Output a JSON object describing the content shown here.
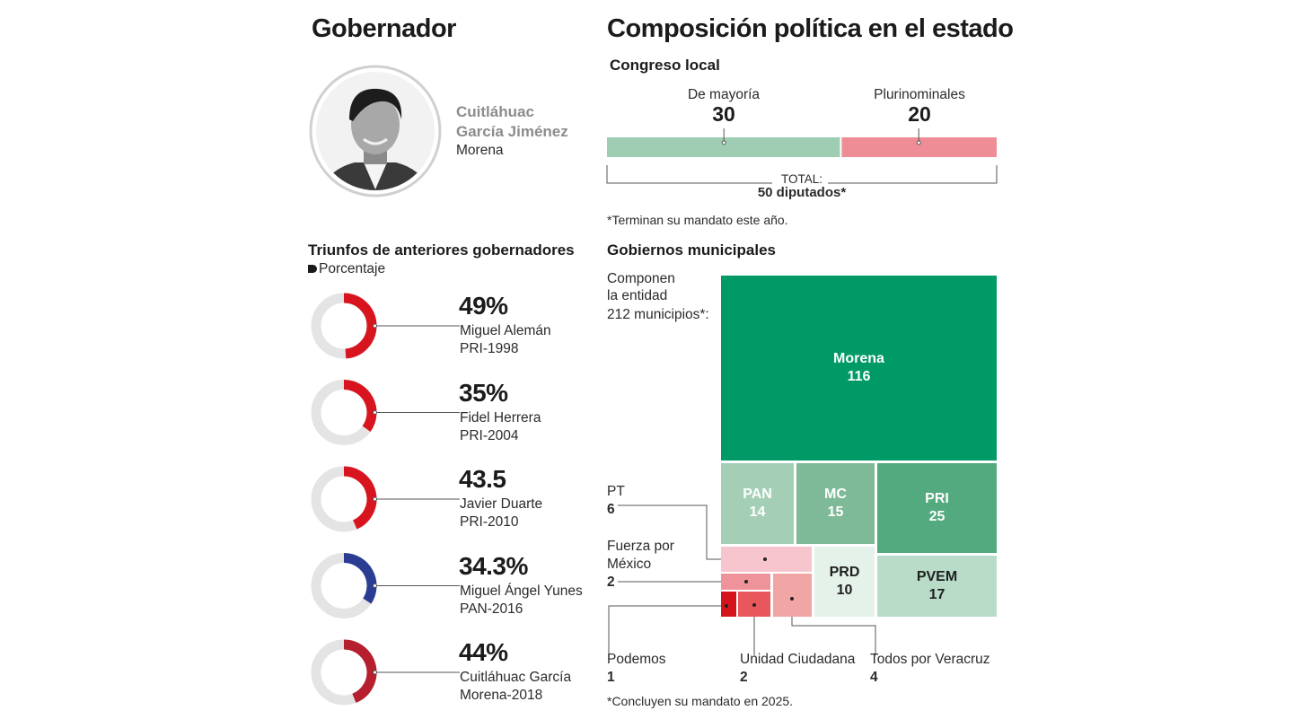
{
  "gobernador": {
    "title": "Gobernador",
    "name_line1": "Cuitláhuac",
    "name_line2": "García Jiménez",
    "party": "Morena"
  },
  "composicion": {
    "title": "Composición política en el estado",
    "congreso_title": "Congreso local",
    "mayoria_label": "De mayoría",
    "mayoria_value": "30",
    "pluri_label": "Plurinominales",
    "pluri_value": "20",
    "total_label": "TOTAL:",
    "total_value": "50 diputados*",
    "note": "*Terminan su mandato este año.",
    "colors": {
      "mayoria": "#9fcdb3",
      "pluri": "#ef8d97"
    }
  },
  "triunfos": {
    "title": "Triunfos de anteriores gobernadores",
    "legend": "Porcentaje",
    "items": [
      {
        "pct_label": "49%",
        "name": "Miguel Alemán",
        "party_year": "PRI-1998",
        "value": 49,
        "color": "#d8151f"
      },
      {
        "pct_label": "35%",
        "name": "Fidel Herrera",
        "party_year": "PRI-2004",
        "value": 35,
        "color": "#d8151f"
      },
      {
        "pct_label": "43.5",
        "name": "Javier Duarte",
        "party_year": "PRI-2010",
        "value": 43.5,
        "color": "#d8151f"
      },
      {
        "pct_label": "34.3%",
        "name": "Miguel Ángel Yunes",
        "party_year": "PAN-2016",
        "value": 34.3,
        "color": "#2a3d93"
      },
      {
        "pct_label": "44%",
        "name": "Cuitláhuac García",
        "party_year": "Morena-2018",
        "value": 44,
        "color": "#b51f2e"
      }
    ]
  },
  "municipios": {
    "title": "Gobiernos municipales",
    "intro_line1": "Componen",
    "intro_line2": "la entidad",
    "intro_line3": "212 municipios*:",
    "note": "*Concluyen su mandato en 2025.",
    "pt_label": "PT",
    "pt_value": "6",
    "fxm_line1": "Fuerza por",
    "fxm_line2": "México",
    "fxm_value": "2",
    "podemos_label": "Podemos",
    "podemos_value": "1",
    "uc_label": "Unidad Ciudadana",
    "uc_value": "2",
    "tpv_label": "Todos por Veracruz",
    "tpv_value": "4"
  },
  "chart_data": [
    {
      "type": "bar",
      "title": "Congreso local",
      "categories": [
        "De mayoría",
        "Plurinominales"
      ],
      "values": [
        30,
        20
      ],
      "total": 50
    },
    {
      "type": "pie",
      "title": "Triunfos de anteriores gobernadores",
      "categories": [
        "Miguel Alemán PRI-1998",
        "Fidel Herrera PRI-2004",
        "Javier Duarte PRI-2010",
        "Miguel Ángel Yunes PAN-2016",
        "Cuitláhuac García Morena-2018"
      ],
      "values": [
        49,
        35,
        43.5,
        34.3,
        44
      ]
    },
    {
      "type": "heatmap",
      "title": "Gobiernos municipales",
      "categories": [
        "Morena",
        "PAN",
        "MC",
        "PRI",
        "PVEM",
        "PRD",
        "PT",
        "Fuerza por México",
        "Podemos",
        "Unidad Ciudadana",
        "Todos por Veracruz"
      ],
      "values": [
        116,
        14,
        15,
        25,
        17,
        10,
        6,
        2,
        1,
        2,
        4
      ],
      "total": 212
    }
  ],
  "treemap": [
    {
      "name": "Morena",
      "value": "116",
      "color": "#009a66",
      "text": "#ffffff"
    },
    {
      "name": "PAN",
      "value": "14",
      "color": "#a4cfb6",
      "text": "#ffffff"
    },
    {
      "name": "MC",
      "value": "15",
      "color": "#7fba98",
      "text": "#ffffff"
    },
    {
      "name": "PRI",
      "value": "25",
      "color": "#52aa7e",
      "text": "#ffffff"
    },
    {
      "name": "PVEM",
      "value": "17",
      "color": "#b8dcc7",
      "text": "#1f1f1f"
    },
    {
      "name": "PRD",
      "value": "10",
      "color": "#e5f2ea",
      "text": "#1f1f1f"
    },
    {
      "name": "PT",
      "value": "6",
      "color": "#f6c5cd",
      "text": "#1f1f1f"
    },
    {
      "name": "Fuerza por México",
      "value": "2",
      "color": "#ef939b",
      "text": "#1f1f1f"
    },
    {
      "name": "Podemos",
      "value": "1",
      "color": "#d4141c",
      "text": "#1f1f1f"
    },
    {
      "name": "Unidad Ciudadana",
      "value": "2",
      "color": "#e8575b",
      "text": "#1f1f1f"
    },
    {
      "name": "Todos por Veracruz",
      "value": "4",
      "color": "#f1a5a5",
      "text": "#1f1f1f"
    }
  ]
}
